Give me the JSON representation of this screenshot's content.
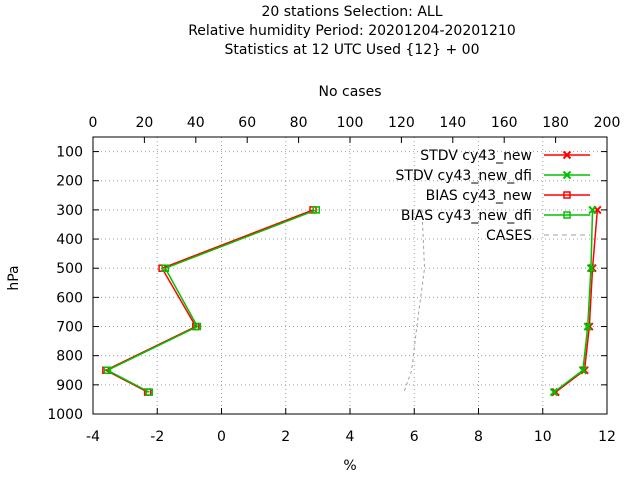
{
  "chart_data": {
    "type": "line",
    "title_lines": [
      "20 stations Selection: ALL",
      "Relative humidity  Period: 20201204-20201210",
      "Statistics at 12 UTC  Used {12} + 00"
    ],
    "xlabel": "%",
    "ylabel": "hPa",
    "x2label": "No cases",
    "xlim": [
      -4,
      12
    ],
    "ylim": [
      1000,
      50
    ],
    "y_inverted": true,
    "x2lim": [
      0,
      200
    ],
    "x_ticks": [
      "-4",
      "-2",
      "0",
      "2",
      "4",
      "6",
      "8",
      "10",
      "12"
    ],
    "x_tick_values": [
      -4,
      -2,
      0,
      2,
      4,
      6,
      8,
      10,
      12
    ],
    "x2_ticks": [
      "0",
      "20",
      "40",
      "60",
      "80",
      "100",
      "120",
      "140",
      "160",
      "180",
      "200"
    ],
    "x2_tick_values": [
      0,
      20,
      40,
      60,
      80,
      100,
      120,
      140,
      160,
      180,
      200
    ],
    "y_ticks": [
      "100",
      "200",
      "300",
      "400",
      "500",
      "600",
      "700",
      "800",
      "900",
      "1000"
    ],
    "y_tick_values": [
      100,
      200,
      300,
      400,
      500,
      600,
      700,
      800,
      900,
      1000
    ],
    "grid": true,
    "legend_position": "top-right",
    "series": [
      {
        "name": "STDV cy43_new",
        "color": "#ff0000",
        "marker": "cross",
        "points": [
          [
            11.7,
            300
          ],
          [
            11.55,
            500
          ],
          [
            11.45,
            700
          ],
          [
            11.3,
            850
          ],
          [
            10.4,
            925
          ]
        ]
      },
      {
        "name": "STDV cy43_new_dfi",
        "color": "#00c000",
        "marker": "cross",
        "points": [
          [
            11.55,
            300
          ],
          [
            11.5,
            500
          ],
          [
            11.4,
            700
          ],
          [
            11.25,
            850
          ],
          [
            10.35,
            925
          ]
        ]
      },
      {
        "name": "BIAS cy43_new",
        "color": "#ff0000",
        "marker": "square",
        "points": [
          [
            2.85,
            300
          ],
          [
            -1.85,
            500
          ],
          [
            -0.8,
            700
          ],
          [
            -3.6,
            850
          ],
          [
            -2.3,
            925
          ]
        ]
      },
      {
        "name": "BIAS cy43_new_dfi",
        "color": "#00c000",
        "marker": "square",
        "points": [
          [
            2.95,
            300
          ],
          [
            -1.75,
            500
          ],
          [
            -0.75,
            700
          ],
          [
            -3.55,
            850
          ],
          [
            -2.25,
            925
          ]
        ]
      }
    ],
    "cases_series": {
      "name": "CASES",
      "color": "#a0a0a0",
      "dash": true,
      "points": [
        [
          128,
          300
        ],
        [
          129,
          500
        ],
        [
          126,
          700
        ],
        [
          124,
          850
        ],
        [
          121,
          925
        ]
      ]
    }
  }
}
